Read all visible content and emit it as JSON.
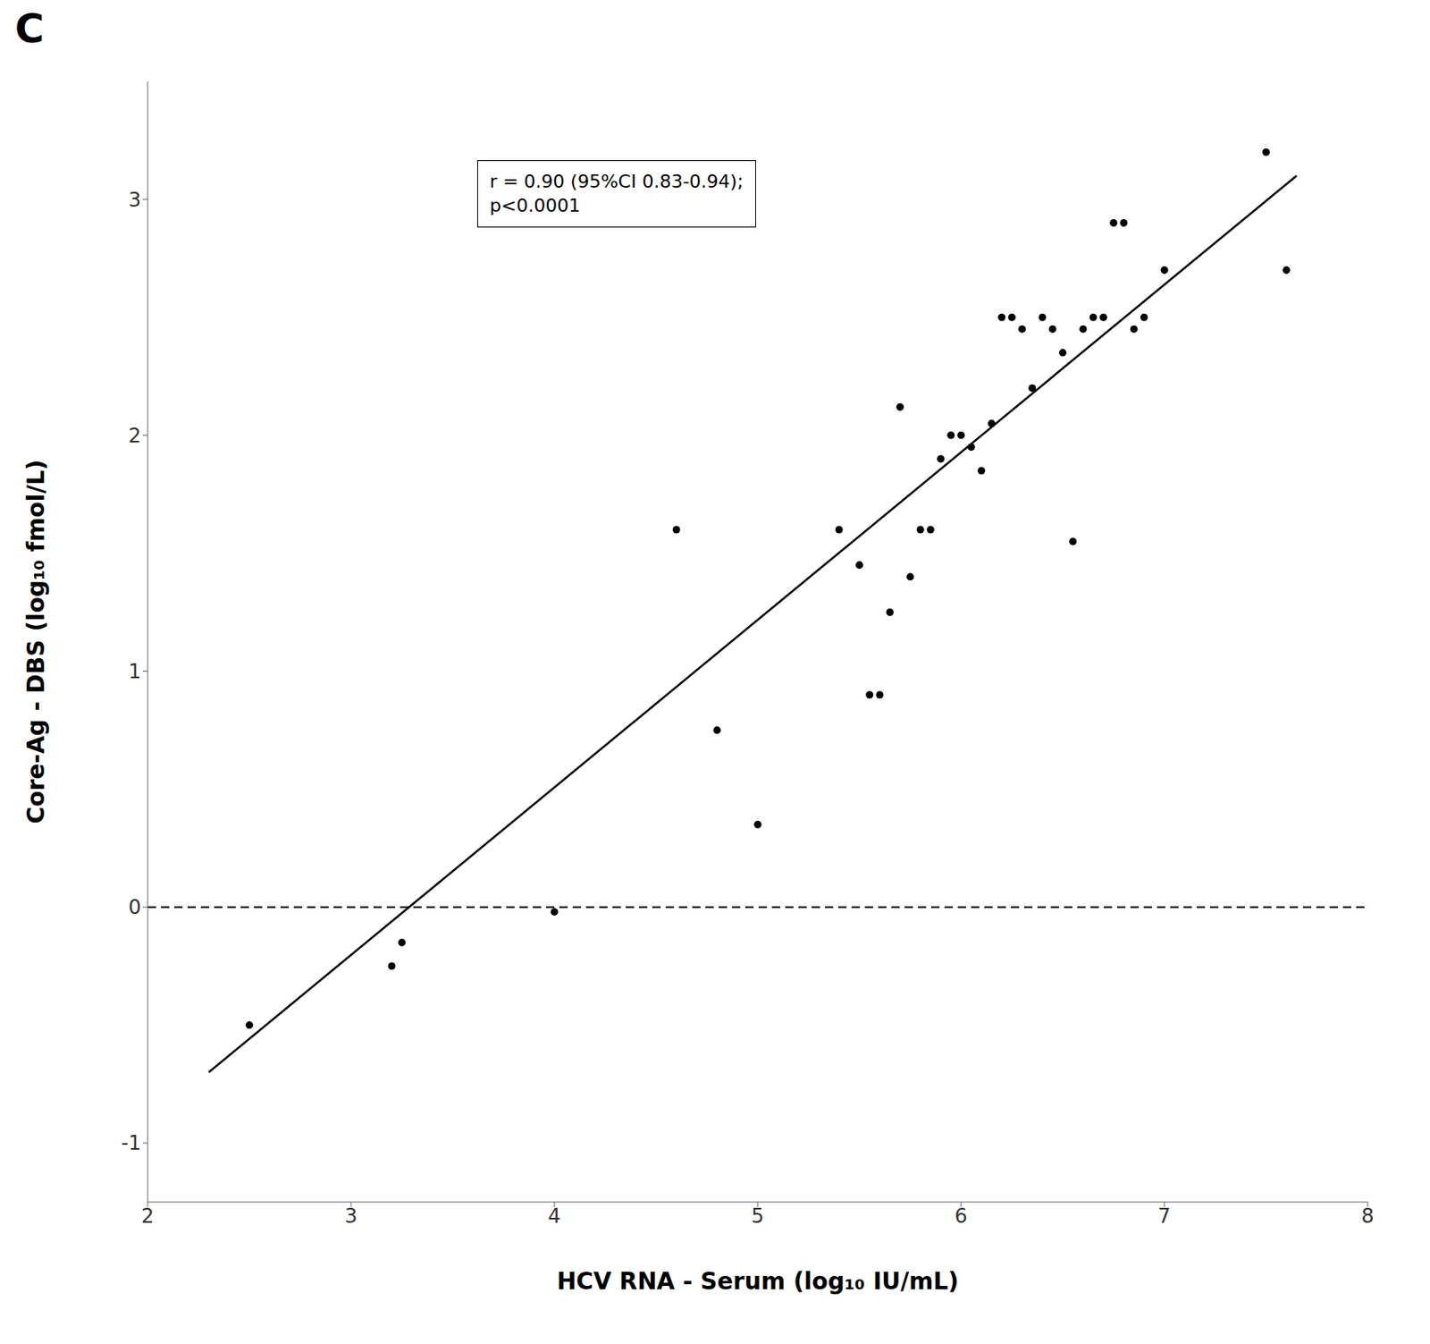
{
  "chart_data": {
    "type": "scatter",
    "title": "C",
    "x_label": "HCV RNA - Serum (log₁₀ IU/mL)",
    "y_label": "Core-Ag - DBS (log₁₀ fmol/L)",
    "annotation": "r = 0.90 (95%CI 0.83-0.94);\np<0.0001",
    "xlim": [
      2,
      8
    ],
    "ylim": [
      -1.25,
      3.5
    ],
    "xticks": [
      2,
      3,
      4,
      5,
      6,
      7,
      8
    ],
    "yticks": [
      -1,
      0,
      1,
      2,
      3
    ],
    "grid": false,
    "series": [
      {
        "type": "scatter",
        "marker": "circle",
        "color": "#000000",
        "x": [
          2.5,
          3.2,
          3.25,
          4.0,
          4.6,
          4.8,
          5.0,
          5.4,
          5.5,
          5.55,
          5.6,
          5.65,
          5.7,
          5.75,
          5.8,
          5.85,
          5.9,
          5.95,
          6.0,
          6.05,
          6.1,
          6.15,
          6.2,
          6.25,
          6.3,
          6.35,
          6.4,
          6.45,
          6.5,
          6.55,
          6.6,
          6.65,
          6.7,
          6.75,
          6.8,
          6.85,
          6.9,
          7.0,
          7.5,
          7.6
        ],
        "values": [
          -0.5,
          -0.25,
          -0.15,
          -0.02,
          1.6,
          0.75,
          0.35,
          1.6,
          1.45,
          0.9,
          0.9,
          1.25,
          2.12,
          1.4,
          1.6,
          1.6,
          1.9,
          2.0,
          2.0,
          1.95,
          1.85,
          2.05,
          2.5,
          2.5,
          2.45,
          2.2,
          2.5,
          2.45,
          2.35,
          1.55,
          2.45,
          2.5,
          2.5,
          2.9,
          2.9,
          2.45,
          2.5,
          2.7,
          3.2,
          2.7
        ]
      },
      {
        "type": "line",
        "line_style": "solid",
        "color": "#000000",
        "x": [
          2.3,
          7.65
        ],
        "values": [
          -0.7,
          3.1
        ]
      }
    ],
    "reference_lines": [
      {
        "y": 0,
        "color": "#000000",
        "line_style": "dashed"
      }
    ]
  }
}
